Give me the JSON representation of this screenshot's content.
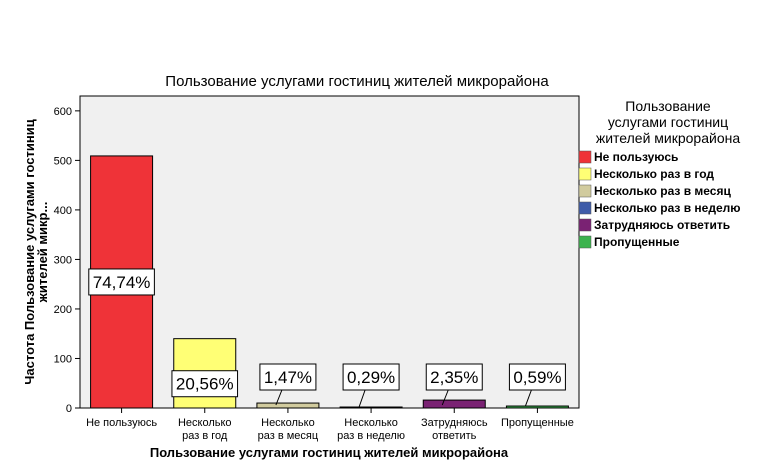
{
  "chart_data": {
    "type": "bar",
    "title": "Пользование услугами гостиниц жителей микрорайона",
    "xlabel": "Пользование услугами гостиниц жителей микрорайона",
    "ylabel_lines": [
      "Частота Пользование услугами гостиниц",
      "жителей микр..."
    ],
    "categories": [
      [
        "Не пользуюсь"
      ],
      [
        "Несколько",
        "раз в год"
      ],
      [
        "Несколько",
        "раз в месяц"
      ],
      [
        "Несколько",
        "раз в неделю"
      ],
      [
        "Затрудняюсь",
        "ответить"
      ],
      [
        "Пропущенные"
      ]
    ],
    "values": [
      509,
      140,
      10,
      2,
      16,
      4
    ],
    "data_labels": [
      "74,74%",
      "20,56%",
      "1,47%",
      "0,29%",
      "2,35%",
      "0,59%"
    ],
    "colors": [
      "#ef3338",
      "#ffff75",
      "#d1cb9e",
      "#3f5ca9",
      "#7a2273",
      "#3cb34e"
    ],
    "ylim": [
      0,
      630
    ],
    "yticks": [
      0,
      100,
      200,
      300,
      400,
      500,
      600
    ],
    "grid": false,
    "plot_background": "#f0f0f0",
    "legend": {
      "title_lines": [
        "Пользование",
        "услугами гостиниц",
        "жителей микрорайона"
      ],
      "entries": [
        "Не пользуюсь",
        "Несколько раз в год",
        "Несколько раз в месяц",
        "Несколько раз в неделю",
        "Затрудняюсь ответить",
        "Пропущенные"
      ],
      "position": "right"
    }
  }
}
